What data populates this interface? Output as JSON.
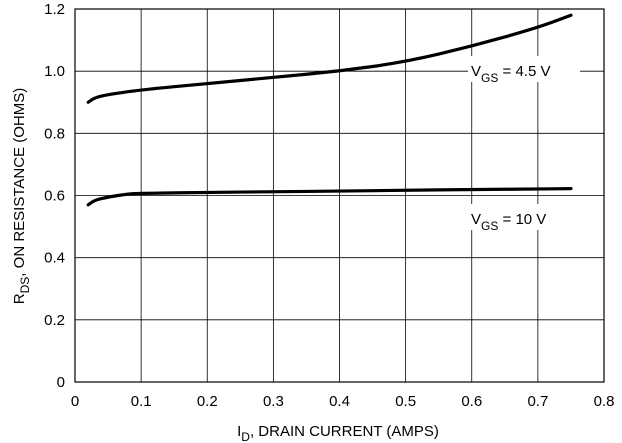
{
  "chart_data": {
    "type": "line",
    "title": "",
    "xlabel": {
      "main": "I",
      "sub": "D",
      "rest": ", DRAIN CURRENT (AMPS)"
    },
    "ylabel": {
      "main": "R",
      "sub": "DS",
      "rest": ", ON RESISTANCE (OHMS)"
    },
    "xlim": [
      0,
      0.8
    ],
    "ylim": [
      0,
      1.2
    ],
    "x_ticks": [
      "0",
      "0.1",
      "0.2",
      "0.3",
      "0.4",
      "0.5",
      "0.6",
      "0.7",
      "0.8"
    ],
    "y_ticks": [
      "0",
      "0.2",
      "0.4",
      "0.6",
      "0.8",
      "1.0",
      "1.2"
    ],
    "grid": true,
    "series": [
      {
        "label": {
          "main": "V",
          "sub": "GS",
          "rest": " = 4.5 V"
        },
        "color": "#000000",
        "x": [
          0.02,
          0.03,
          0.05,
          0.1,
          0.2,
          0.3,
          0.4,
          0.5,
          0.6,
          0.7,
          0.75
        ],
        "y": [
          0.9,
          0.915,
          0.925,
          0.94,
          0.96,
          0.98,
          1.0,
          1.03,
          1.08,
          1.14,
          1.18
        ]
      },
      {
        "label": {
          "main": "V",
          "sub": "GS",
          "rest": " = 10 V"
        },
        "color": "#000000",
        "x": [
          0.02,
          0.03,
          0.05,
          0.08,
          0.1,
          0.2,
          0.3,
          0.4,
          0.5,
          0.6,
          0.7,
          0.75
        ],
        "y": [
          0.57,
          0.585,
          0.595,
          0.605,
          0.607,
          0.61,
          0.612,
          0.614,
          0.617,
          0.619,
          0.621,
          0.622
        ]
      }
    ]
  }
}
